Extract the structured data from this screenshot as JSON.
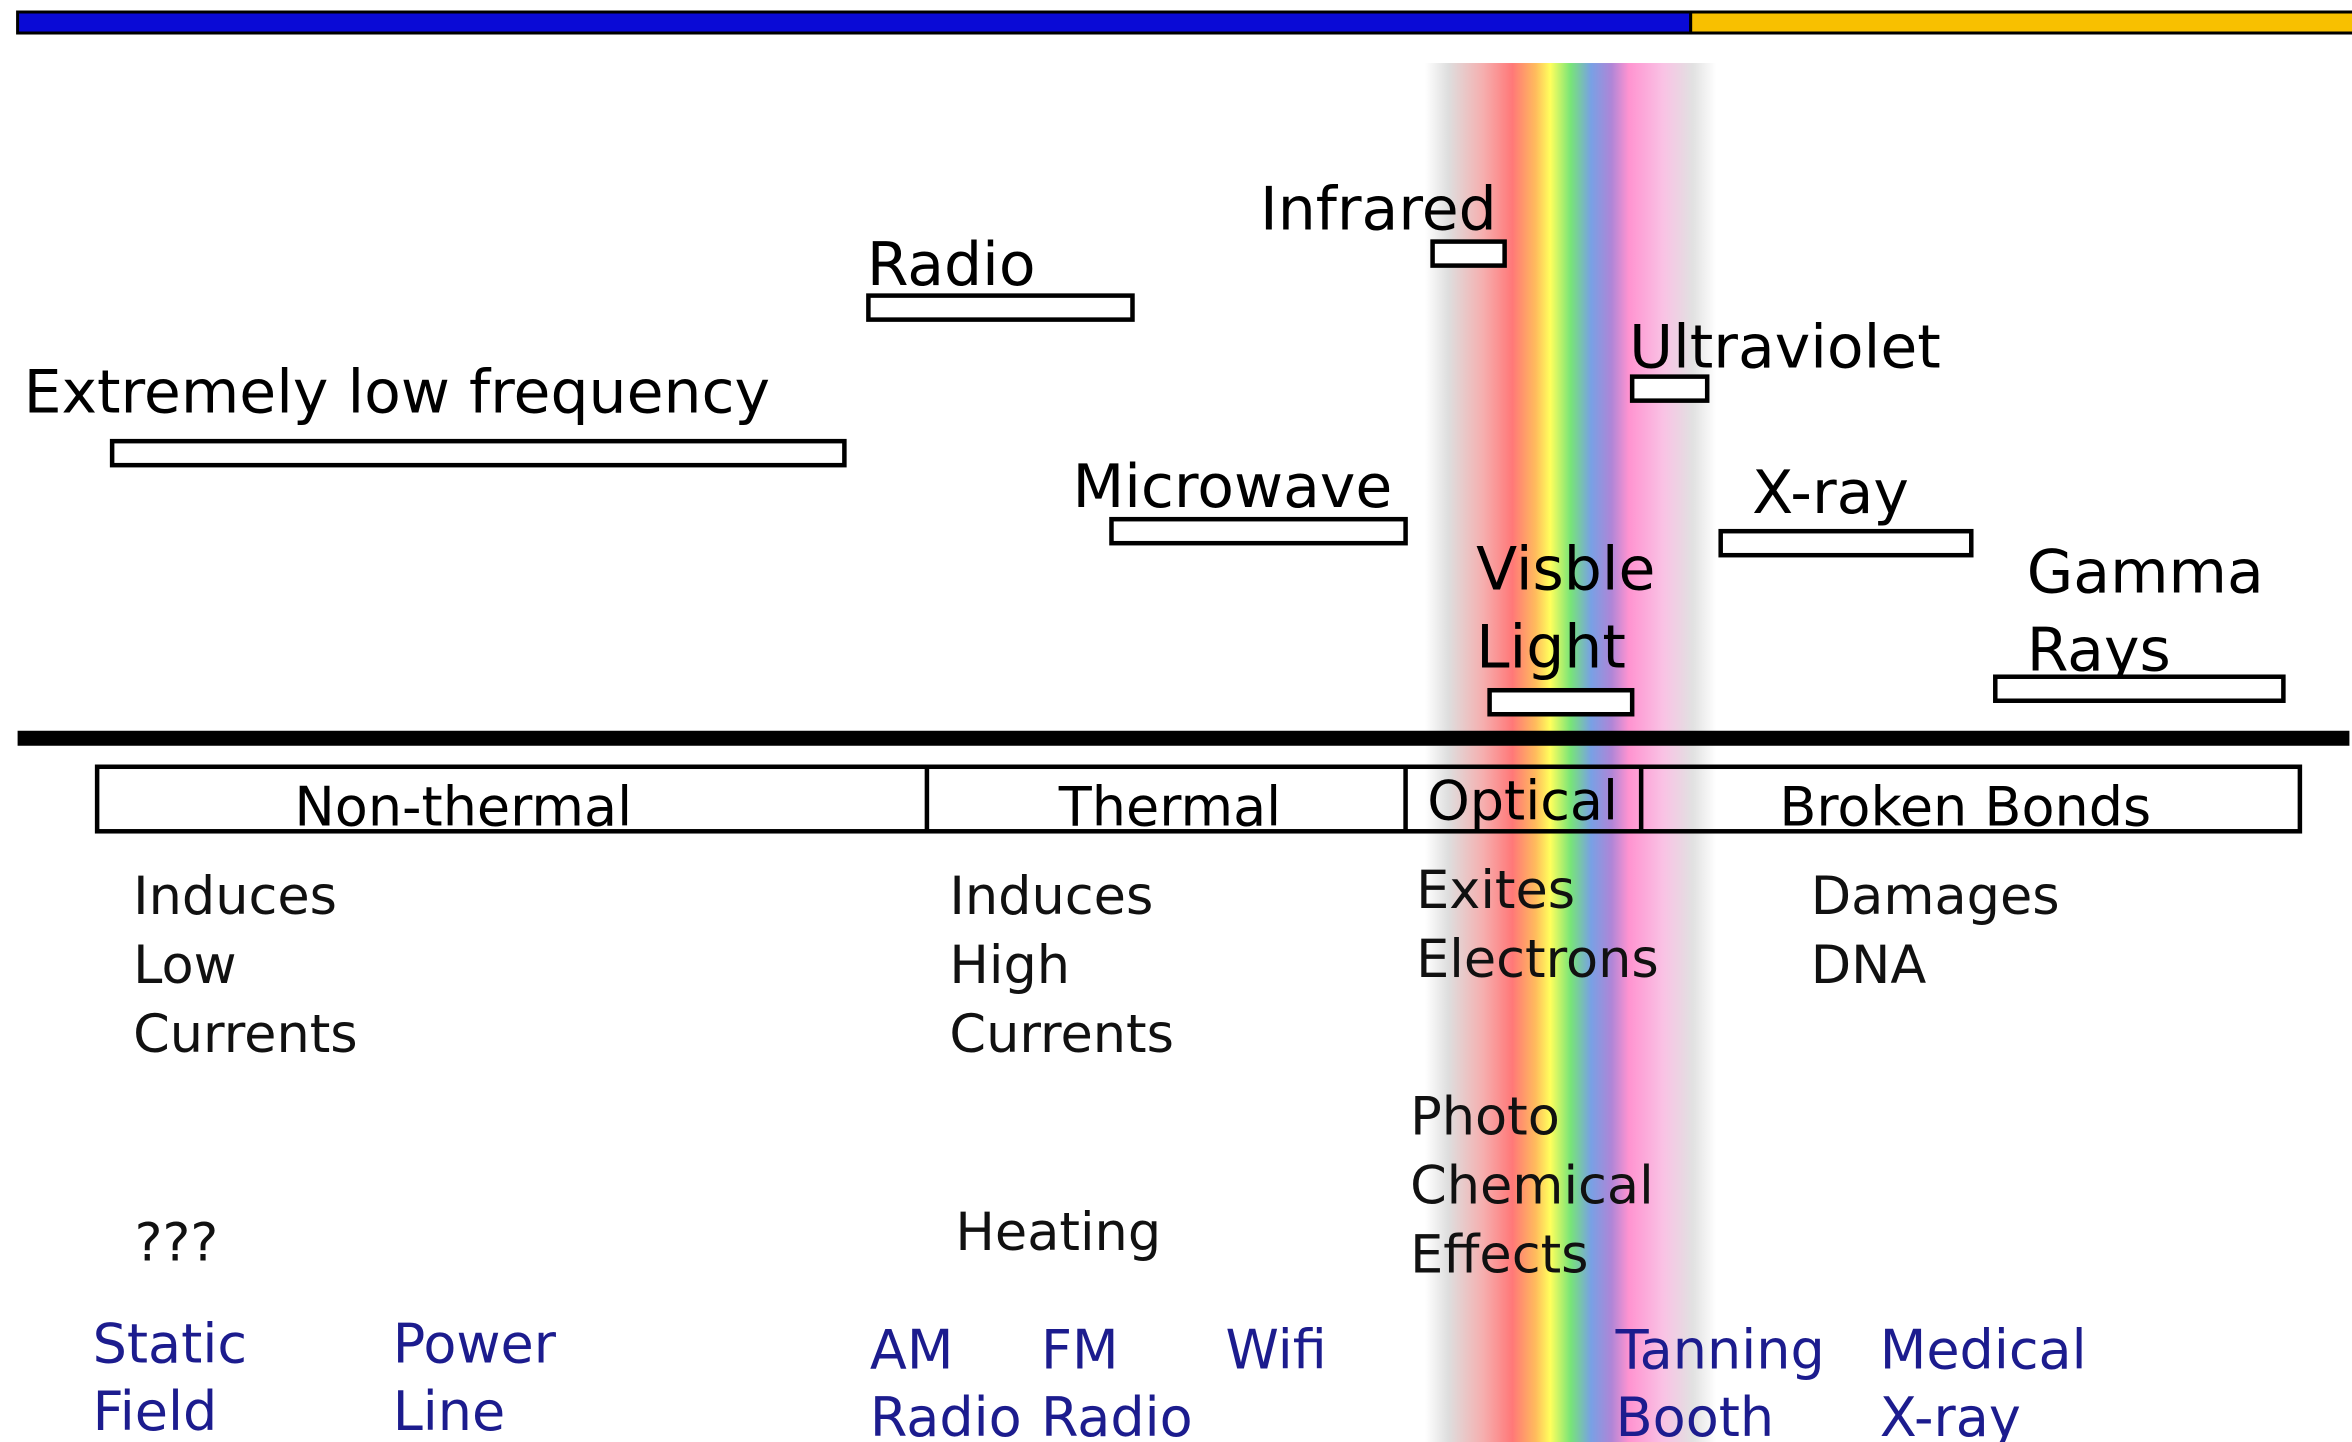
{
  "bands": [
    {
      "label": "Extremely low frequency"
    },
    {
      "label": "Radio"
    },
    {
      "label": "Infrared"
    },
    {
      "label": "Ultraviolet"
    },
    {
      "label": "Microwave"
    },
    {
      "label": "X-ray"
    },
    {
      "label": [
        "Visble",
        "Light"
      ]
    },
    {
      "label": [
        "Gamma",
        "Rays"
      ]
    }
  ],
  "regimes": [
    {
      "label": "Non-thermal",
      "effect": [
        "Induces",
        "Low",
        "Currents"
      ],
      "outcome": [
        "???"
      ]
    },
    {
      "label": "Thermal",
      "effect": [
        "Induces",
        "High",
        "Currents"
      ],
      "outcome": [
        "Heating"
      ]
    },
    {
      "label": "Optical",
      "effect": [
        "Exites",
        "Electrons"
      ],
      "outcome": [
        "Photo",
        "Chemical",
        "Effects"
      ]
    },
    {
      "label": "Broken Bonds",
      "effect": [
        "Damages",
        "DNA"
      ]
    }
  ],
  "examples": [
    [
      "Static",
      "Field"
    ],
    [
      "Power",
      "Line"
    ],
    [
      "AM",
      "Radio"
    ],
    [
      "FM",
      "Radio"
    ],
    [
      "Wifi"
    ],
    [
      "Tanning",
      "Booth"
    ],
    [
      "Medical",
      "X-ray"
    ]
  ]
}
